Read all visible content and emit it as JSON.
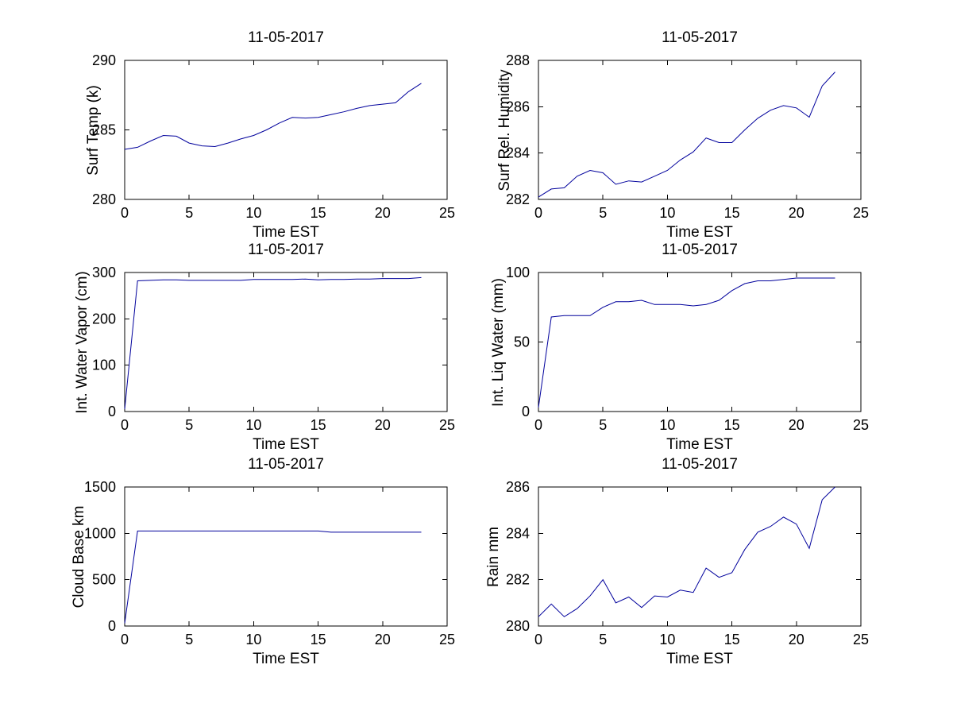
{
  "figure": {
    "background_color": "#ffffff",
    "axis_color": "#000000",
    "line_color": "#00009c"
  },
  "chart_data": [
    {
      "type": "line",
      "title": "11-05-2017",
      "xlabel": "Time EST",
      "ylabel": "Surf Temp (k)",
      "xlim": [
        0,
        25
      ],
      "ylim": [
        280,
        290
      ],
      "xticks": [
        0,
        5,
        10,
        15,
        20,
        25
      ],
      "yticks": [
        280,
        285,
        290
      ],
      "x": [
        0,
        1,
        2,
        3,
        4,
        5,
        6,
        7,
        8,
        9,
        10,
        11,
        12,
        13,
        14,
        15,
        16,
        17,
        18,
        19,
        20,
        21,
        22,
        23
      ],
      "values": [
        283.6,
        283.75,
        284.2,
        284.6,
        284.55,
        284.05,
        283.85,
        283.8,
        284.05,
        284.35,
        284.6,
        285.0,
        285.5,
        285.9,
        285.85,
        285.9,
        286.1,
        286.3,
        286.55,
        286.75,
        286.85,
        286.95,
        287.75,
        288.35
      ],
      "grid": false,
      "legend": null
    },
    {
      "type": "line",
      "title": "11-05-2017",
      "xlabel": "Time EST",
      "ylabel": "Surf Rel. Humidity",
      "xlim": [
        0,
        25
      ],
      "ylim": [
        282,
        288
      ],
      "xticks": [
        0,
        5,
        10,
        15,
        20,
        25
      ],
      "yticks": [
        282,
        284,
        286,
        288
      ],
      "x": [
        0,
        1,
        2,
        3,
        4,
        5,
        6,
        7,
        8,
        9,
        10,
        11,
        12,
        13,
        14,
        15,
        16,
        17,
        18,
        19,
        20,
        21,
        22,
        23
      ],
      "values": [
        282.1,
        282.45,
        282.5,
        283.0,
        283.25,
        283.15,
        282.65,
        282.8,
        282.75,
        283.0,
        283.25,
        283.7,
        284.05,
        284.65,
        284.45,
        284.45,
        285.0,
        285.5,
        285.85,
        286.05,
        285.95,
        285.55,
        286.9,
        287.5
      ],
      "grid": false,
      "legend": null
    },
    {
      "type": "line",
      "title": "11-05-2017",
      "xlabel": "Time EST",
      "ylabel": "Int. Water Vapor (cm)",
      "xlim": [
        0,
        25
      ],
      "ylim": [
        0,
        300
      ],
      "xticks": [
        0,
        5,
        10,
        15,
        20,
        25
      ],
      "yticks": [
        0,
        100,
        200,
        300
      ],
      "x": [
        0,
        1,
        2,
        3,
        4,
        5,
        6,
        7,
        8,
        9,
        10,
        11,
        12,
        13,
        14,
        15,
        16,
        17,
        18,
        19,
        20,
        21,
        22,
        23
      ],
      "values": [
        5,
        282,
        283,
        284,
        284,
        283,
        283,
        283,
        283,
        283,
        285,
        285,
        285,
        285,
        286,
        284,
        285,
        285,
        286,
        286,
        287,
        287,
        287,
        289
      ],
      "grid": false,
      "legend": null
    },
    {
      "type": "line",
      "title": "11-05-2017",
      "xlabel": "Time EST",
      "ylabel": "Int. Liq Water (mm)",
      "xlim": [
        0,
        25
      ],
      "ylim": [
        0,
        100
      ],
      "xticks": [
        0,
        5,
        10,
        15,
        20,
        25
      ],
      "yticks": [
        0,
        50,
        100
      ],
      "x": [
        0,
        1,
        2,
        3,
        4,
        5,
        6,
        7,
        8,
        9,
        10,
        11,
        12,
        13,
        14,
        15,
        16,
        17,
        18,
        19,
        20,
        21,
        22,
        23
      ],
      "values": [
        3,
        68,
        69,
        69,
        69,
        75,
        79,
        79,
        80,
        77,
        77,
        77,
        76,
        77,
        80,
        87,
        92,
        94,
        94,
        95,
        96,
        96,
        96,
        96
      ],
      "grid": false,
      "legend": null
    },
    {
      "type": "line",
      "title": "11-05-2017",
      "xlabel": "Time EST",
      "ylabel": "Cloud Base km",
      "xlim": [
        0,
        25
      ],
      "ylim": [
        0,
        1500
      ],
      "xticks": [
        0,
        5,
        10,
        15,
        20,
        25
      ],
      "yticks": [
        0,
        500,
        1000,
        1500
      ],
      "x": [
        0,
        1,
        2,
        3,
        4,
        5,
        6,
        7,
        8,
        9,
        10,
        11,
        12,
        13,
        14,
        15,
        16,
        17,
        18,
        19,
        20,
        21,
        22,
        23
      ],
      "values": [
        30,
        1025,
        1025,
        1025,
        1025,
        1025,
        1025,
        1025,
        1025,
        1025,
        1025,
        1025,
        1025,
        1025,
        1025,
        1025,
        1012,
        1012,
        1012,
        1012,
        1012,
        1012,
        1012,
        1012
      ],
      "grid": false,
      "legend": null
    },
    {
      "type": "line",
      "title": "11-05-2017",
      "xlabel": "Time EST",
      "ylabel": "Rain mm",
      "xlim": [
        0,
        25
      ],
      "ylim": [
        280,
        286
      ],
      "xticks": [
        0,
        5,
        10,
        15,
        20,
        25
      ],
      "yticks": [
        280,
        282,
        284,
        286
      ],
      "x": [
        0,
        1,
        2,
        3,
        4,
        5,
        6,
        7,
        8,
        9,
        10,
        11,
        12,
        13,
        14,
        15,
        16,
        17,
        18,
        19,
        20,
        21,
        22,
        23
      ],
      "values": [
        280.4,
        280.95,
        280.4,
        280.75,
        281.3,
        282.0,
        281.0,
        281.25,
        280.8,
        281.3,
        281.25,
        281.55,
        281.45,
        282.5,
        282.1,
        282.3,
        283.3,
        284.05,
        284.3,
        284.7,
        284.4,
        283.35,
        285.45,
        286.0
      ],
      "grid": false,
      "legend": null
    }
  ]
}
